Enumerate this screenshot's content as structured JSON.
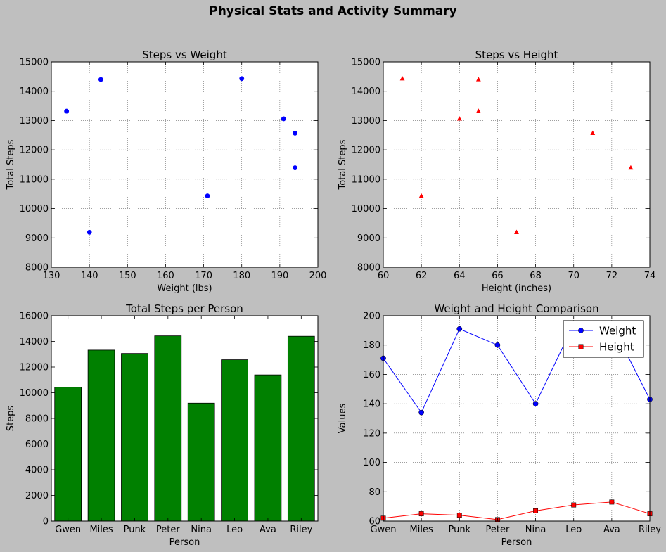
{
  "figure": {
    "title": "Physical Stats and Activity Summary"
  },
  "persons": [
    "Gwen",
    "Miles",
    "Punk",
    "Peter",
    "Nina",
    "Leo",
    "Ava",
    "Riley"
  ],
  "chart_data": [
    {
      "type": "scatter",
      "title": "Steps vs Weight",
      "xlabel": "Weight (lbs)",
      "ylabel": "Total Steps",
      "xlim": [
        130,
        200
      ],
      "ylim": [
        8000,
        15000
      ],
      "xticks": [
        130,
        140,
        150,
        160,
        170,
        180,
        190,
        200
      ],
      "yticks": [
        8000,
        9000,
        10000,
        11000,
        12000,
        13000,
        14000,
        15000
      ],
      "grid": true,
      "marker": "circle",
      "color": "#0000ff",
      "points": [
        {
          "x": 171,
          "y": 10430
        },
        {
          "x": 134,
          "y": 13320
        },
        {
          "x": 191,
          "y": 13060
        },
        {
          "x": 180,
          "y": 14430
        },
        {
          "x": 140,
          "y": 9190
        },
        {
          "x": 194,
          "y": 12570
        },
        {
          "x": 194,
          "y": 11390
        },
        {
          "x": 143,
          "y": 14400
        }
      ]
    },
    {
      "type": "scatter",
      "title": "Steps vs Height",
      "xlabel": "Height (inches)",
      "ylabel": "Total Steps",
      "xlim": [
        60,
        74
      ],
      "ylim": [
        8000,
        15000
      ],
      "xticks": [
        60,
        62,
        64,
        66,
        68,
        70,
        72,
        74
      ],
      "yticks": [
        8000,
        9000,
        10000,
        11000,
        12000,
        13000,
        14000,
        15000
      ],
      "grid": true,
      "marker": "triangle",
      "color": "#ff0000",
      "points": [
        {
          "x": 62,
          "y": 10430
        },
        {
          "x": 65,
          "y": 13320
        },
        {
          "x": 64,
          "y": 13060
        },
        {
          "x": 61,
          "y": 14430
        },
        {
          "x": 67,
          "y": 9190
        },
        {
          "x": 71,
          "y": 12570
        },
        {
          "x": 73,
          "y": 11390
        },
        {
          "x": 65,
          "y": 14400
        }
      ]
    },
    {
      "type": "bar",
      "title": "Total Steps per Person",
      "xlabel": "Person",
      "ylabel": "Steps",
      "categories": [
        "Gwen",
        "Miles",
        "Punk",
        "Peter",
        "Nina",
        "Leo",
        "Ava",
        "Riley"
      ],
      "values": [
        10430,
        13320,
        13060,
        14430,
        9190,
        12570,
        11390,
        14400
      ],
      "ylim": [
        0,
        16000
      ],
      "yticks": [
        0,
        2000,
        4000,
        6000,
        8000,
        10000,
        12000,
        14000,
        16000
      ],
      "grid": false,
      "color": "#008000"
    },
    {
      "type": "line",
      "title": "Weight and Height Comparison",
      "xlabel": "Person",
      "ylabel": "Values",
      "categories": [
        "Gwen",
        "Miles",
        "Punk",
        "Peter",
        "Nina",
        "Leo",
        "Ava",
        "Riley"
      ],
      "ylim": [
        60,
        200
      ],
      "yticks": [
        60,
        80,
        100,
        120,
        140,
        160,
        180,
        200
      ],
      "grid": true,
      "legend": "top-right",
      "series": [
        {
          "name": "Weight",
          "values": [
            171,
            134,
            191,
            180,
            140,
            194,
            194,
            143
          ],
          "color": "#0000ff",
          "marker": "circle"
        },
        {
          "name": "Height",
          "values": [
            62,
            65,
            64,
            61,
            67,
            71,
            73,
            65
          ],
          "color": "#ff0000",
          "marker": "square"
        }
      ]
    }
  ]
}
